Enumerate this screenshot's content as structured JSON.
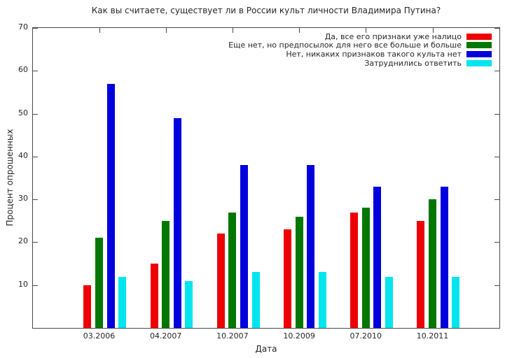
{
  "chart_data": {
    "type": "bar",
    "title": "Как вы считаете, существует ли в России культ личности Владимира Путина?",
    "xlabel": "Дата",
    "ylabel": "Процент опрошенных",
    "categories": [
      "03.2006",
      "04.2007",
      "10.2007",
      "10.2009",
      "07.2010",
      "10.2011"
    ],
    "series": [
      {
        "name": "Да, все его признаки уже налицо",
        "color": "#ee0000",
        "values": [
          10,
          15,
          22,
          23,
          27,
          25
        ]
      },
      {
        "name": "Еще нет, но предпосылок для него все больше и больше",
        "color": "#007700",
        "values": [
          21,
          25,
          27,
          26,
          28,
          30
        ]
      },
      {
        "name": "Нет, никаких признаков такого культа нет",
        "color": "#0000dd",
        "values": [
          57,
          49,
          38,
          38,
          33,
          33
        ]
      },
      {
        "name": "Затруднились ответить",
        "color": "#00e5ee",
        "values": [
          12,
          11,
          13,
          13,
          12,
          12
        ]
      }
    ],
    "ylim": [
      0,
      70
    ],
    "yticks": [
      10,
      20,
      30,
      40,
      50,
      60,
      70
    ],
    "grid": false,
    "legend_position": "top-right",
    "legend_frame": false,
    "axis_color": "#4a4a4a",
    "text_color": "#262626"
  }
}
